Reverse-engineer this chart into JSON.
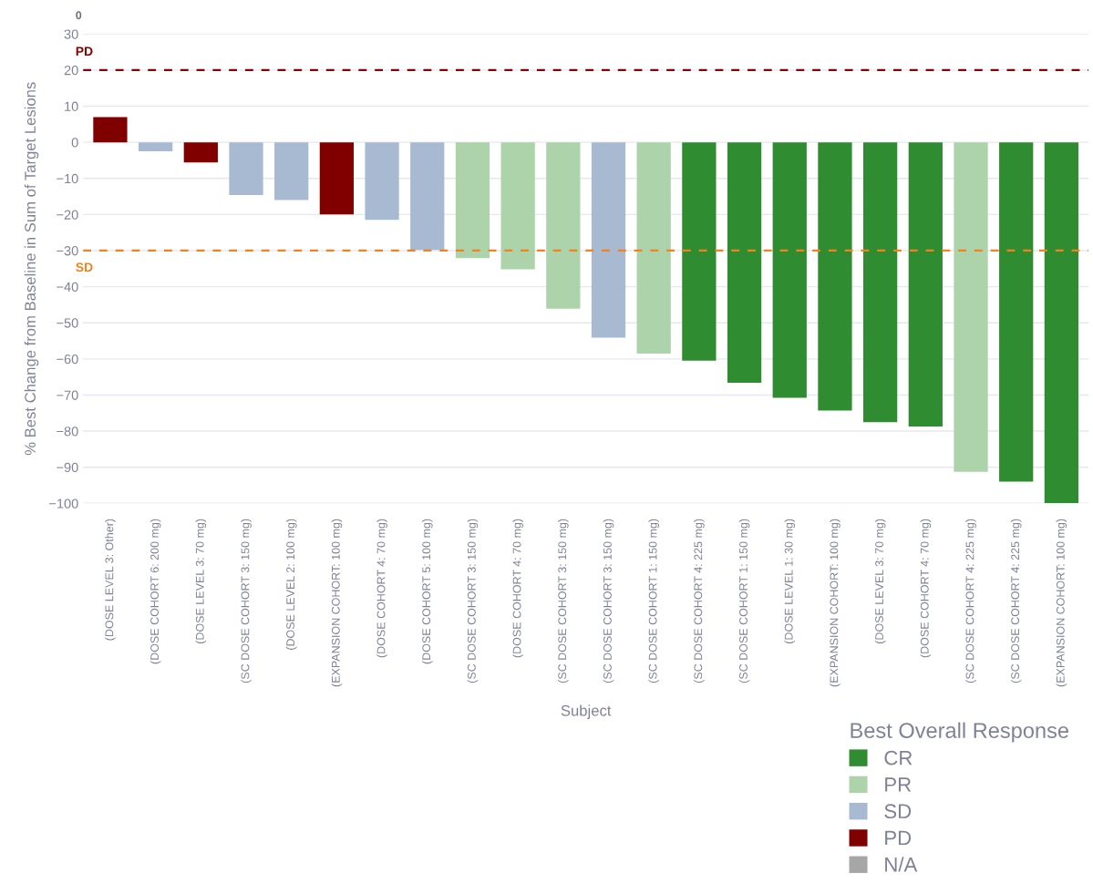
{
  "chart_data": {
    "type": "bar",
    "xlabel": "Subject",
    "ylabel": "% Best Change from Baseline in Sum of Target Lesions",
    "legend_title": "Best Overall Response",
    "categories": [
      "(DOSE LEVEL 3: Other)",
      "(DOSE COHORT 6: 200 mg)",
      "(DOSE LEVEL 3: 70 mg)",
      "(SC DOSE COHORT 3: 150 mg)",
      "(DOSE LEVEL 2: 100 mg)",
      "(EXPANSION COHORT: 100 mg)",
      "(DOSE COHORT 4: 70 mg)",
      "(DOSE COHORT 5: 100 mg)",
      "(SC DOSE COHORT 3: 150 mg)",
      "(DOSE COHORT 4: 70 mg)",
      "(SC DOSE COHORT 3: 150 mg)",
      "(SC DOSE COHORT 3: 150 mg)",
      "(SC DOSE COHORT 1: 150 mg)",
      "(SC DOSE COHORT 4: 225 mg)",
      "(SC DOSE COHORT 1: 150 mg)",
      "(DOSE LEVEL 1: 30 mg)",
      "(EXPANSION COHORT: 100 mg)",
      "(DOSE LEVEL 3: 70 mg)",
      "(DOSE COHORT 4: 70 mg)",
      "(SC DOSE COHORT 4: 225 mg)",
      "(SC DOSE COHORT 4: 225 mg)",
      "(EXPANSION COHORT: 100 mg)"
    ],
    "series": [
      {
        "name": "CR",
        "color": "#2f8c31",
        "values": [
          null,
          null,
          null,
          null,
          null,
          null,
          null,
          null,
          null,
          null,
          null,
          null,
          null,
          -60.5,
          -66.6,
          -70.8,
          -74.3,
          -77.5,
          -78.7,
          null,
          -94.0,
          -100
        ]
      },
      {
        "name": "PR",
        "color": "#acd3aa",
        "values": [
          null,
          null,
          null,
          null,
          null,
          null,
          null,
          null,
          -32.1,
          -35.2,
          -46.1,
          null,
          -58.5,
          null,
          null,
          null,
          null,
          null,
          null,
          -91.3,
          null,
          null
        ]
      },
      {
        "name": "SD",
        "color": "#a8bad1",
        "values": [
          null,
          -2.5,
          null,
          -14.6,
          -16,
          null,
          -21.5,
          -29.8,
          null,
          null,
          null,
          -54.1,
          null,
          null,
          null,
          null,
          null,
          null,
          null,
          null,
          null,
          null
        ]
      },
      {
        "name": "PD",
        "color": "#800000",
        "values": [
          7,
          null,
          -5.6,
          null,
          null,
          -20,
          null,
          null,
          null,
          null,
          null,
          null,
          null,
          null,
          null,
          null,
          null,
          null,
          null,
          null,
          null,
          null
        ]
      },
      {
        "name": "N/A",
        "color": "#a6a6a6",
        "values": [
          null,
          null,
          null,
          null,
          null,
          null,
          null,
          null,
          null,
          null,
          null,
          null,
          null,
          null,
          null,
          null,
          null,
          null,
          null,
          null,
          null,
          null
        ]
      }
    ],
    "ylim": [
      -100,
      30
    ],
    "yticks": [
      30,
      20,
      10,
      0,
      -10,
      -20,
      -30,
      -40,
      -50,
      -60,
      -70,
      -80,
      -90,
      -100
    ],
    "ref_lines": [
      {
        "axis": "y",
        "value": 20,
        "label": "PD",
        "color": "#8b0000",
        "line_style": "dashed"
      },
      {
        "axis": "y",
        "value": -30,
        "label": "SD",
        "color": "#f5801e",
        "line_style": "dashed"
      }
    ],
    "annotations": [
      "0"
    ],
    "grid": "y",
    "legend": "bottom right"
  }
}
